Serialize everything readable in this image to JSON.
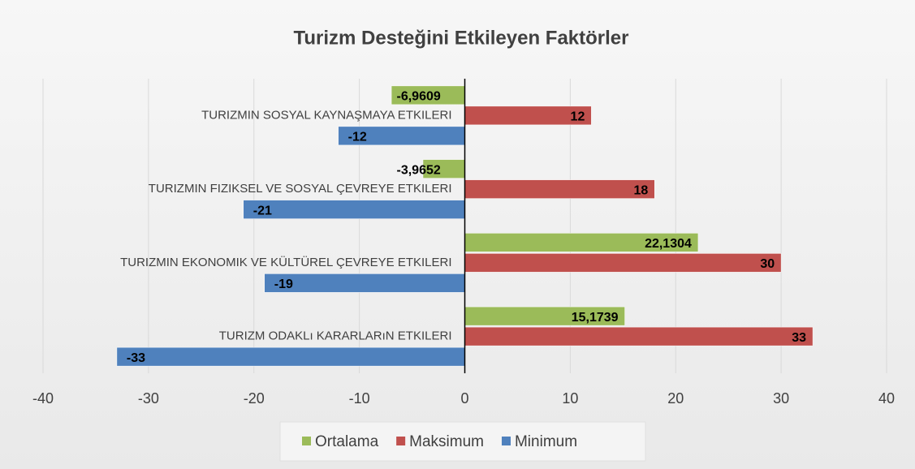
{
  "chart_data": {
    "type": "hbar",
    "title": "Turizm Desteğini Etkileyen Faktörler",
    "categories": [
      "TURIZMIN SOSYAL KAYNAŞMAYA ETKILERI",
      "TURIZMIN FIZIKSEL VE SOSYAL ÇEVREYE ETKILERI",
      "TURIZMIN EKONOMIK VE KÜLTÜREL ÇEVREYE ETKILERI",
      "TURIZM ODAKLı KARARLARıN ETKILERI"
    ],
    "series": [
      {
        "name": "Ortalama",
        "color": "#9bbb59",
        "values": [
          -6.9609,
          -3.9652,
          22.1304,
          15.1739
        ],
        "value_labels": [
          "-6,9609",
          "-3,9652",
          "22,1304",
          "15,1739"
        ]
      },
      {
        "name": "Maksimum",
        "color": "#c0504d",
        "values": [
          12,
          18,
          30,
          33
        ]
      },
      {
        "name": "Minimum",
        "color": "#4f81bd",
        "values": [
          -12,
          -21,
          -19,
          -33
        ]
      }
    ],
    "xlim": [
      -40,
      40
    ],
    "xticks": [
      -40,
      -30,
      -20,
      -10,
      0,
      10,
      20,
      30,
      40
    ],
    "grid": true,
    "legend": "bottom"
  }
}
